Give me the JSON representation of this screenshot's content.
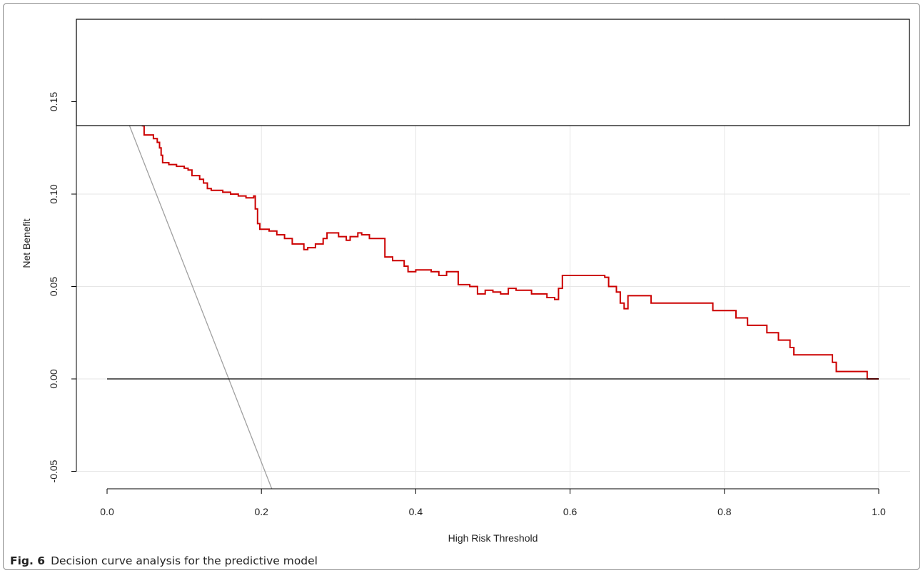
{
  "caption": {
    "label": "Fig. 6",
    "text": "Decision curve analysis for the predictive model"
  },
  "chart_data": {
    "type": "line",
    "xlabel": "High Risk Threshold",
    "ylabel": "Net Benefit",
    "xlim": [
      0.0,
      1.0
    ],
    "ylim": [
      -0.06,
      0.2
    ],
    "x_ticks": [
      0.0,
      0.2,
      0.4,
      0.6,
      0.8,
      1.0
    ],
    "x_tick_labels": [
      "0.0",
      "0.2",
      "0.4",
      "0.6",
      "0.8",
      "1.0"
    ],
    "y_ticks": [
      -0.05,
      0.0,
      0.05,
      0.1,
      0.15
    ],
    "y_tick_labels": [
      "-0.05",
      "0.00",
      "0.05",
      "0.10",
      "0.15"
    ],
    "grid": true,
    "legend": "top (box, contents not readable)",
    "colors": {
      "model": "#cc0000",
      "all": "#a0a0a0",
      "none": "#000000",
      "grid": "#e6e6e6"
    },
    "series": [
      {
        "style": "step",
        "color": "#cc0000",
        "points": [
          [
            0.045,
            0.137
          ],
          [
            0.048,
            0.132
          ],
          [
            0.06,
            0.13
          ],
          [
            0.065,
            0.128
          ],
          [
            0.068,
            0.125
          ],
          [
            0.07,
            0.121
          ],
          [
            0.072,
            0.117
          ],
          [
            0.08,
            0.116
          ],
          [
            0.09,
            0.115
          ],
          [
            0.1,
            0.114
          ],
          [
            0.105,
            0.113
          ],
          [
            0.11,
            0.11
          ],
          [
            0.12,
            0.108
          ],
          [
            0.125,
            0.106
          ],
          [
            0.13,
            0.103
          ],
          [
            0.135,
            0.102
          ],
          [
            0.15,
            0.101
          ],
          [
            0.16,
            0.1
          ],
          [
            0.17,
            0.099
          ],
          [
            0.18,
            0.098
          ],
          [
            0.19,
            0.099
          ],
          [
            0.192,
            0.092
          ],
          [
            0.195,
            0.084
          ],
          [
            0.198,
            0.081
          ],
          [
            0.21,
            0.08
          ],
          [
            0.22,
            0.078
          ],
          [
            0.23,
            0.076
          ],
          [
            0.24,
            0.073
          ],
          [
            0.255,
            0.07
          ],
          [
            0.26,
            0.071
          ],
          [
            0.27,
            0.073
          ],
          [
            0.28,
            0.076
          ],
          [
            0.285,
            0.079
          ],
          [
            0.3,
            0.077
          ],
          [
            0.31,
            0.075
          ],
          [
            0.315,
            0.077
          ],
          [
            0.325,
            0.079
          ],
          [
            0.33,
            0.078
          ],
          [
            0.34,
            0.076
          ],
          [
            0.36,
            0.066
          ],
          [
            0.37,
            0.064
          ],
          [
            0.385,
            0.061
          ],
          [
            0.39,
            0.058
          ],
          [
            0.4,
            0.059
          ],
          [
            0.42,
            0.058
          ],
          [
            0.43,
            0.056
          ],
          [
            0.44,
            0.058
          ],
          [
            0.455,
            0.051
          ],
          [
            0.47,
            0.05
          ],
          [
            0.48,
            0.046
          ],
          [
            0.49,
            0.048
          ],
          [
            0.5,
            0.047
          ],
          [
            0.51,
            0.046
          ],
          [
            0.52,
            0.049
          ],
          [
            0.53,
            0.048
          ],
          [
            0.55,
            0.046
          ],
          [
            0.57,
            0.044
          ],
          [
            0.58,
            0.043
          ],
          [
            0.585,
            0.049
          ],
          [
            0.59,
            0.056
          ],
          [
            0.62,
            0.056
          ],
          [
            0.645,
            0.055
          ],
          [
            0.65,
            0.05
          ],
          [
            0.66,
            0.047
          ],
          [
            0.665,
            0.041
          ],
          [
            0.67,
            0.038
          ],
          [
            0.675,
            0.045
          ],
          [
            0.7,
            0.045
          ],
          [
            0.705,
            0.041
          ],
          [
            0.78,
            0.041
          ],
          [
            0.785,
            0.037
          ],
          [
            0.81,
            0.037
          ],
          [
            0.815,
            0.033
          ],
          [
            0.825,
            0.033
          ],
          [
            0.83,
            0.029
          ],
          [
            0.85,
            0.029
          ],
          [
            0.855,
            0.025
          ],
          [
            0.865,
            0.025
          ],
          [
            0.87,
            0.021
          ],
          [
            0.88,
            0.021
          ],
          [
            0.885,
            0.017
          ],
          [
            0.89,
            0.013
          ],
          [
            0.935,
            0.013
          ],
          [
            0.94,
            0.009
          ],
          [
            0.945,
            0.004
          ],
          [
            0.98,
            0.004
          ],
          [
            0.985,
            0.0
          ],
          [
            1.0,
            0.0
          ]
        ]
      },
      {
        "style": "line",
        "color": "#a0a0a0",
        "points": [
          [
            0.0,
            0.168
          ],
          [
            0.214,
            -0.06
          ]
        ]
      },
      {
        "style": "line",
        "color": "#000000",
        "points": [
          [
            0.0,
            0.0
          ],
          [
            1.0,
            0.0
          ]
        ]
      }
    ]
  }
}
